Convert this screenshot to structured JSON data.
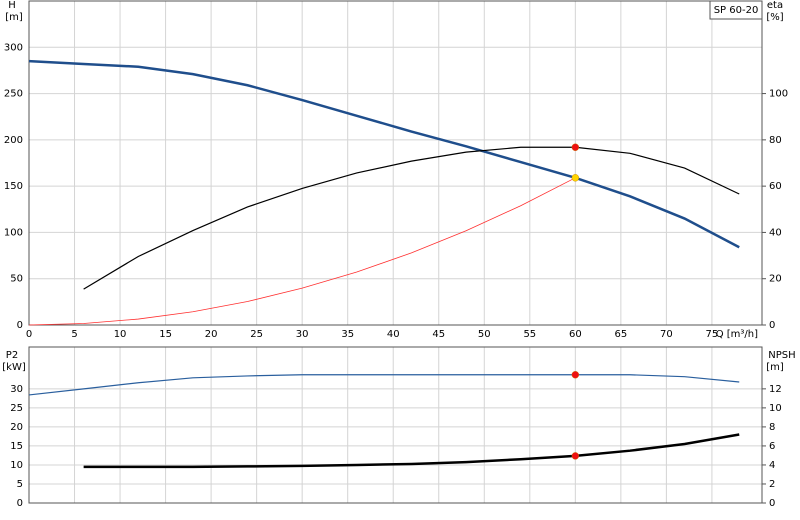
{
  "chart_data": [
    {
      "type": "line",
      "title": "SP 60-20",
      "ylabel": "H",
      "yunit": "[m]",
      "y2label": "eta",
      "y2unit": "[%]",
      "xlabel": "Q [m³/h]",
      "xlim": [
        0,
        80.5
      ],
      "xticks": [
        0,
        5,
        10,
        15,
        20,
        25,
        30,
        35,
        40,
        45,
        50,
        55,
        60,
        65,
        70,
        75
      ],
      "show_xtick_labels": true,
      "ylim": [
        0,
        350
      ],
      "yticks": [
        0,
        50,
        100,
        150,
        200,
        250,
        300
      ],
      "y2lim": [
        0,
        140
      ],
      "y2ticks": [
        0,
        20,
        40,
        60,
        80,
        100
      ],
      "grid": true,
      "series": [
        {
          "color": "#1f4e8c",
          "linewidth": 2.5,
          "axis": "y",
          "x": [
            0,
            6,
            12,
            18,
            24,
            30,
            36,
            42,
            48,
            54,
            60,
            66,
            72,
            78
          ],
          "values": [
            285,
            282,
            279,
            271,
            259,
            243,
            226,
            209,
            193,
            176,
            159,
            139,
            115,
            84
          ]
        },
        {
          "color": "#000000",
          "linewidth": 1.2,
          "axis": "y2",
          "x": [
            6,
            12,
            18,
            24,
            30,
            36,
            42,
            48,
            54,
            60,
            66,
            72,
            78
          ],
          "values": [
            15.5,
            29.6,
            40.8,
            51,
            59,
            65.7,
            70.8,
            74.7,
            76.8,
            76.8,
            74.2,
            67.8,
            56.6
          ]
        },
        {
          "color": "#ff3030",
          "linewidth": 0.8,
          "axis": "y",
          "x": [
            0,
            6,
            12,
            18,
            24,
            30,
            36,
            42,
            48,
            54,
            60
          ],
          "values": [
            0,
            1.6,
            6.4,
            14.3,
            25.4,
            39.8,
            57.2,
            77.9,
            101.8,
            128.8,
            159
          ]
        },
        {
          "color": "#ffd400",
          "marker": true,
          "axis": "y",
          "x": [
            60
          ],
          "values": [
            159
          ]
        },
        {
          "color": "#ee1111",
          "marker": true,
          "axis": "y2",
          "x": [
            60
          ],
          "values": [
            76.8
          ]
        }
      ]
    },
    {
      "type": "line",
      "ylabel": "P2",
      "yunit": "[kW]",
      "y2label": "NPSH",
      "y2unit": "[m]",
      "xlim": [
        0,
        80.5
      ],
      "xticks": [
        0,
        5,
        10,
        15,
        20,
        25,
        30,
        35,
        40,
        45,
        50,
        55,
        60,
        65,
        70,
        75
      ],
      "show_xtick_labels": false,
      "ylim": [
        0,
        41
      ],
      "yticks": [
        0,
        5,
        10,
        15,
        20,
        25,
        30
      ],
      "y2lim": [
        0,
        16.4
      ],
      "y2ticks": [
        0,
        2,
        4,
        6,
        8,
        10,
        12
      ],
      "grid": true,
      "series": [
        {
          "color": "#2a5f9e",
          "linewidth": 1.2,
          "axis": "y",
          "x": [
            0,
            6,
            12,
            18,
            24,
            30,
            36,
            42,
            48,
            54,
            60,
            66,
            72,
            78
          ],
          "values": [
            28.4,
            30,
            31.6,
            32.9,
            33.4,
            33.7,
            33.7,
            33.7,
            33.7,
            33.7,
            33.7,
            33.7,
            33.2,
            31.8
          ]
        },
        {
          "color": "#000000",
          "linewidth": 2.5,
          "axis": "y2",
          "x": [
            6,
            12,
            18,
            24,
            30,
            36,
            42,
            48,
            54,
            60,
            66,
            72,
            78
          ],
          "values": [
            3.8,
            3.8,
            3.8,
            3.85,
            3.9,
            4.0,
            4.1,
            4.3,
            4.6,
            4.95,
            5.5,
            6.2,
            7.2
          ]
        },
        {
          "color": "#ee1111",
          "marker": true,
          "axis": "y",
          "x": [
            60
          ],
          "values": [
            33.7
          ]
        },
        {
          "color": "#ee1111",
          "marker": true,
          "axis": "y2",
          "x": [
            60
          ],
          "values": [
            4.95
          ]
        }
      ]
    }
  ]
}
